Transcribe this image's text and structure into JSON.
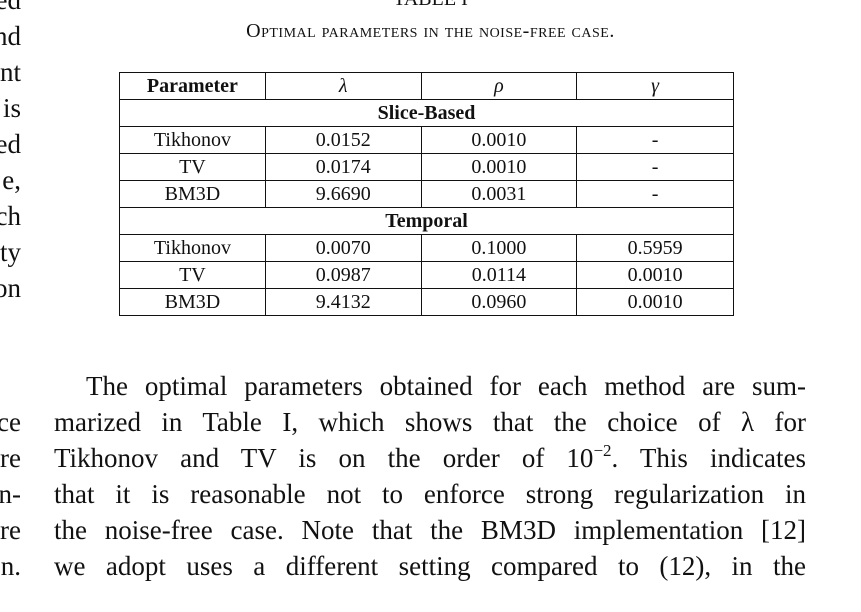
{
  "left_column": {
    "top_fragments": [
      "ed",
      "nd",
      "nt",
      "is",
      "ed",
      "e,",
      "ch",
      "ty",
      "on"
    ],
    "bottom_fragments": [
      "ce",
      "re",
      "n-",
      "re",
      "n."
    ]
  },
  "table": {
    "label": "TABLE I",
    "caption": "Optimal parameters in the noise-free case.",
    "headers": [
      "Parameter",
      "λ",
      "ρ",
      "γ"
    ],
    "sections": [
      {
        "title": "Slice-Based",
        "rows": [
          [
            "Tikhonov",
            "0.0152",
            "0.0010",
            "-"
          ],
          [
            "TV",
            "0.0174",
            "0.0010",
            "-"
          ],
          [
            "BM3D",
            "9.6690",
            "0.0031",
            "-"
          ]
        ]
      },
      {
        "title": "Temporal",
        "rows": [
          [
            "Tikhonov",
            "0.0070",
            "0.1000",
            "0.5959"
          ],
          [
            "TV",
            "0.0987",
            "0.0114",
            "0.0010"
          ],
          [
            "BM3D",
            "9.4132",
            "0.0960",
            "0.0010"
          ]
        ]
      }
    ]
  },
  "paragraph": {
    "line1": "The optimal parameters obtained for each method are sum-",
    "line2": "marized in Table I, which shows that the choice of λ for",
    "line3_a": "Tikhonov and TV is on the order of 10",
    "line3_sup": "−2",
    "line3_b": ". This indicates",
    "line4": "that it is reasonable not to enforce strong regularization in",
    "line5": "the noise-free case. Note that the BM3D implementation [12]",
    "line6": "we adopt uses a different setting compared to (12), in the"
  }
}
